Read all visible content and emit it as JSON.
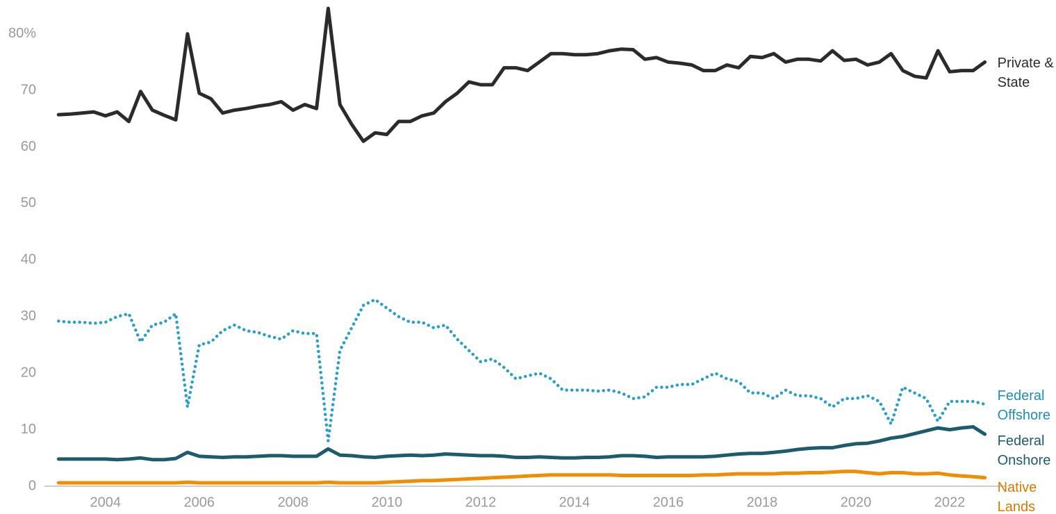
{
  "chart_data": {
    "type": "line",
    "x": [
      2003,
      2003.25,
      2003.5,
      2003.75,
      2004,
      2004.25,
      2004.5,
      2004.75,
      2005,
      2005.25,
      2005.5,
      2005.75,
      2006,
      2006.25,
      2006.5,
      2006.75,
      2007,
      2007.25,
      2007.5,
      2007.75,
      2008,
      2008.25,
      2008.5,
      2008.75,
      2009,
      2009.25,
      2009.5,
      2009.75,
      2010,
      2010.25,
      2010.5,
      2010.75,
      2011,
      2011.25,
      2011.5,
      2011.75,
      2012,
      2012.25,
      2012.5,
      2012.75,
      2013,
      2013.25,
      2013.5,
      2013.75,
      2014,
      2014.25,
      2014.5,
      2014.75,
      2015,
      2015.25,
      2015.5,
      2015.75,
      2016,
      2016.25,
      2016.5,
      2016.75,
      2017,
      2017.25,
      2017.5,
      2017.75,
      2018,
      2018.25,
      2018.5,
      2018.75,
      2019,
      2019.25,
      2019.5,
      2019.75,
      2020,
      2020.25,
      2020.5,
      2020.75,
      2021,
      2021.25,
      2021.5,
      2021.75,
      2022,
      2022.25,
      2022.5,
      2022.75
    ],
    "series": [
      {
        "name": "Private & State",
        "color": "#2b2b2b",
        "label_color": "#2b2b2b",
        "style": "solid",
        "values": [
          65.7,
          65.8,
          66.0,
          66.2,
          65.5,
          66.2,
          64.5,
          69.8,
          66.5,
          65.6,
          64.8,
          80.0,
          69.5,
          68.5,
          66.0,
          66.5,
          66.8,
          67.2,
          67.5,
          68.0,
          66.5,
          67.5,
          66.8,
          84.5,
          67.5,
          64.0,
          61.0,
          62.5,
          62.2,
          64.5,
          64.5,
          65.5,
          66.0,
          68.0,
          69.5,
          71.5,
          71.0,
          71.0,
          74.0,
          74.0,
          73.5,
          75.0,
          76.5,
          76.5,
          76.3,
          76.3,
          76.5,
          77.0,
          77.3,
          77.2,
          75.5,
          75.8,
          75.0,
          74.8,
          74.5,
          73.5,
          73.5,
          74.5,
          74.0,
          76.0,
          75.8,
          76.5,
          75.0,
          75.5,
          75.5,
          75.2,
          77.0,
          75.3,
          75.5,
          74.5,
          75.0,
          76.5,
          73.5,
          72.5,
          72.2,
          77.0,
          73.3,
          73.5,
          73.5,
          75.0
        ]
      },
      {
        "name": "Federal Offshore",
        "color": "#2a9fc7",
        "label_color": "#1f8fb5",
        "style": "dotted",
        "values": [
          29.2,
          29.0,
          29.0,
          28.8,
          29.0,
          30.0,
          30.5,
          25.5,
          28.5,
          29.0,
          30.5,
          14.0,
          25.0,
          25.5,
          27.5,
          28.5,
          27.5,
          27.2,
          26.5,
          26.0,
          27.5,
          27.0,
          27.0,
          8.0,
          24.0,
          28.0,
          32.0,
          33.0,
          31.5,
          30.0,
          29.0,
          29.0,
          28.0,
          28.5,
          26.0,
          24.0,
          22.0,
          22.5,
          21.0,
          19.0,
          19.5,
          20.0,
          19.0,
          17.0,
          17.0,
          17.0,
          16.8,
          17.0,
          16.5,
          15.5,
          15.8,
          17.5,
          17.5,
          18.0,
          18.0,
          19.0,
          20.0,
          19.0,
          18.5,
          16.5,
          16.5,
          15.5,
          17.0,
          16.0,
          16.0,
          15.5,
          14.0,
          15.5,
          15.5,
          16.0,
          15.0,
          11.0,
          17.5,
          16.5,
          15.5,
          11.5,
          15.0,
          15.0,
          15.0,
          14.5
        ]
      },
      {
        "name": "Federal Onshore",
        "color": "#1d5b6e",
        "label_color": "#1d5b6e",
        "style": "solid",
        "values": [
          4.8,
          4.8,
          4.8,
          4.8,
          4.8,
          4.7,
          4.8,
          5.0,
          4.7,
          4.7,
          4.9,
          6.0,
          5.3,
          5.2,
          5.1,
          5.2,
          5.2,
          5.3,
          5.4,
          5.4,
          5.3,
          5.3,
          5.3,
          6.6,
          5.5,
          5.4,
          5.2,
          5.1,
          5.3,
          5.4,
          5.5,
          5.4,
          5.5,
          5.7,
          5.6,
          5.5,
          5.4,
          5.4,
          5.3,
          5.1,
          5.1,
          5.2,
          5.1,
          5.0,
          5.0,
          5.1,
          5.1,
          5.2,
          5.4,
          5.4,
          5.3,
          5.1,
          5.2,
          5.2,
          5.2,
          5.2,
          5.3,
          5.5,
          5.7,
          5.8,
          5.8,
          6.0,
          6.2,
          6.5,
          6.7,
          6.8,
          6.8,
          7.2,
          7.5,
          7.6,
          8.0,
          8.5,
          8.8,
          9.3,
          9.8,
          10.3,
          10.0,
          10.3,
          10.5,
          9.2
        ]
      },
      {
        "name": "Native Lands",
        "color": "#f28c00",
        "label_color": "#d97a00",
        "style": "solid",
        "values": [
          0.6,
          0.6,
          0.6,
          0.6,
          0.6,
          0.6,
          0.6,
          0.6,
          0.6,
          0.6,
          0.6,
          0.7,
          0.6,
          0.6,
          0.6,
          0.6,
          0.6,
          0.6,
          0.6,
          0.6,
          0.6,
          0.6,
          0.6,
          0.7,
          0.6,
          0.6,
          0.6,
          0.6,
          0.7,
          0.8,
          0.9,
          1.0,
          1.0,
          1.1,
          1.2,
          1.3,
          1.4,
          1.5,
          1.6,
          1.7,
          1.8,
          1.9,
          2.0,
          2.0,
          2.0,
          2.0,
          2.0,
          2.0,
          1.9,
          1.9,
          1.9,
          1.9,
          1.9,
          1.9,
          1.9,
          2.0,
          2.0,
          2.1,
          2.2,
          2.2,
          2.2,
          2.2,
          2.3,
          2.3,
          2.4,
          2.4,
          2.5,
          2.6,
          2.6,
          2.4,
          2.2,
          2.4,
          2.4,
          2.2,
          2.2,
          2.3,
          2.0,
          1.8,
          1.7,
          1.5
        ]
      }
    ],
    "xlim": [
      2002.7,
      2023.2
    ],
    "xticks": [
      2004,
      2006,
      2008,
      2010,
      2012,
      2014,
      2016,
      2018,
      2020,
      2022
    ],
    "ylim": [
      0,
      85
    ],
    "yticks": [
      0,
      10,
      20,
      30,
      40,
      50,
      60,
      70,
      {
        "value": 80,
        "label": "80%"
      }
    ],
    "grid": false
  }
}
